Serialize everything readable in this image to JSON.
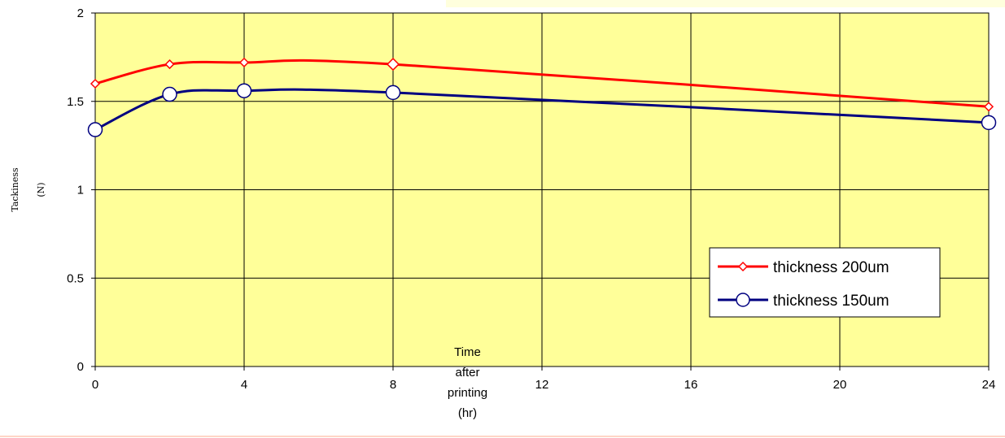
{
  "chart_data": {
    "type": "line",
    "title": "",
    "xlabel_lines": [
      "Time",
      "after",
      "printing",
      "(hr)"
    ],
    "ylabel_lines": [
      "Tackiness",
      "(N)"
    ],
    "xlim": [
      0,
      24
    ],
    "ylim": [
      0,
      2
    ],
    "x_ticks": [
      "0",
      "4",
      "8",
      "12",
      "16",
      "20",
      "24"
    ],
    "y_ticks": [
      "0",
      "0.5",
      "1",
      "1.5",
      "2"
    ],
    "x_tick_values": [
      0,
      4,
      8,
      12,
      16,
      20,
      24
    ],
    "y_tick_values": [
      0,
      0.5,
      1,
      1.5,
      2
    ],
    "grid": true,
    "plot_background": "#ffff99",
    "legend_position": "right",
    "series": [
      {
        "name": "thickness 200um",
        "color": "#ff0000",
        "marker": "diamond",
        "x": [
          0,
          2,
          4,
          8,
          24
        ],
        "y": [
          1.6,
          1.71,
          1.72,
          1.71,
          1.47
        ]
      },
      {
        "name": "thickness 150um",
        "color": "#000080",
        "marker": "circle",
        "x": [
          0,
          2,
          4,
          8,
          24
        ],
        "y": [
          1.34,
          1.54,
          1.56,
          1.55,
          1.38
        ]
      }
    ]
  }
}
